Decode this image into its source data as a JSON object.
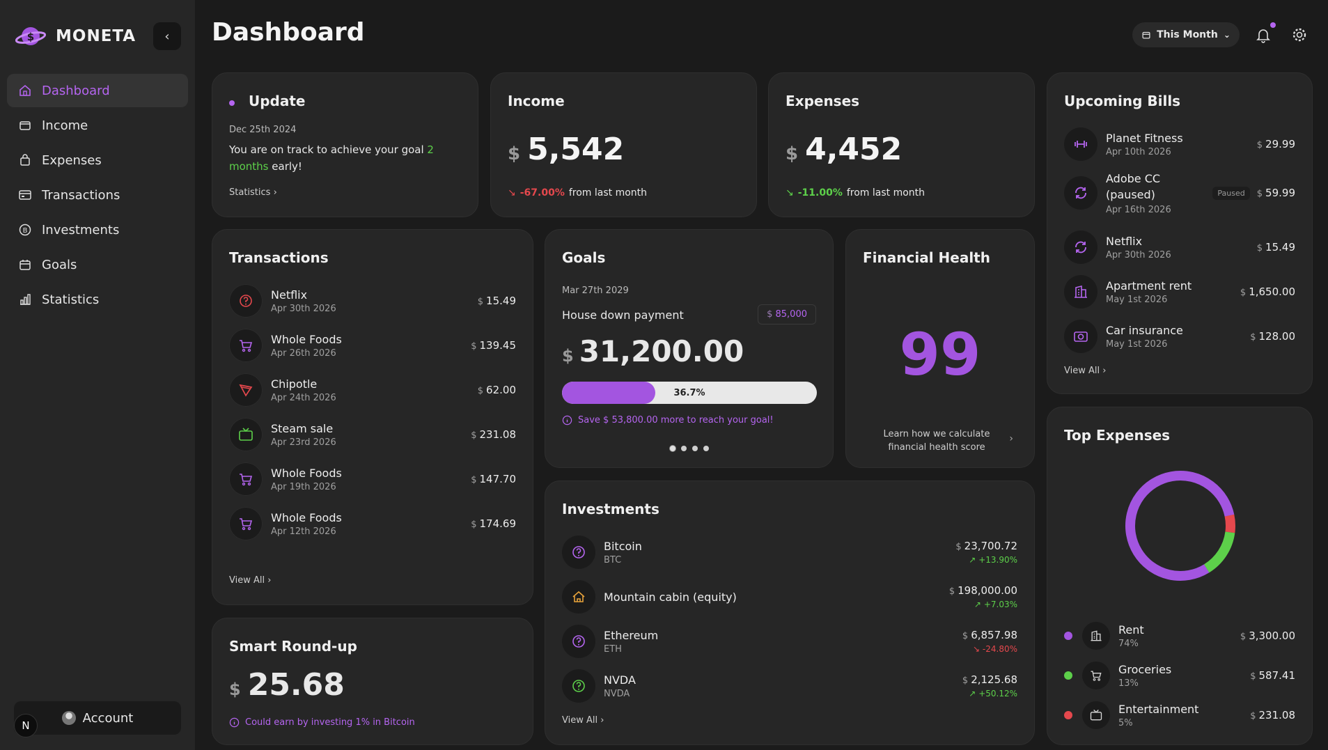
{
  "app": {
    "name": "MONETA"
  },
  "sidebar": {
    "items": [
      {
        "label": "Dashboard",
        "icon": "home-icon",
        "active": true
      },
      {
        "label": "Income",
        "icon": "wallet-icon"
      },
      {
        "label": "Expenses",
        "icon": "bag-icon"
      },
      {
        "label": "Transactions",
        "icon": "card-icon"
      },
      {
        "label": "Investments",
        "icon": "bitcoin-icon"
      },
      {
        "label": "Goals",
        "icon": "calendar-icon"
      },
      {
        "label": "Statistics",
        "icon": "chart-icon"
      }
    ],
    "account_label": "Account",
    "badge": "N"
  },
  "header": {
    "title": "Dashboard",
    "period": "This Month"
  },
  "update": {
    "title": "Update",
    "date": "Dec 25th 2024",
    "message_before": "You are on track to achieve your goal ",
    "message_highlight": "2 months",
    "message_after": " early!",
    "link": "Statistics"
  },
  "income": {
    "title": "Income",
    "currency": "$",
    "amount": "5,542",
    "change": "-67.00%",
    "change_text": "from last month"
  },
  "expenses": {
    "title": "Expenses",
    "currency": "$",
    "amount": "4,452",
    "change": "-11.00%",
    "change_text": "from last month"
  },
  "bills": {
    "title": "Upcoming Bills",
    "items": [
      {
        "name": "Planet Fitness",
        "date": "Apr 10th 2026",
        "currency": "$",
        "amount": "29.99",
        "icon": "dumbbell-icon"
      },
      {
        "name": "Adobe CC (paused)",
        "date": "Apr 16th 2026",
        "currency": "$",
        "amount": "59.99",
        "badge": "Paused",
        "icon": "refresh-icon"
      },
      {
        "name": "Netflix",
        "date": "Apr 30th 2026",
        "currency": "$",
        "amount": "15.49",
        "icon": "refresh-icon"
      },
      {
        "name": "Apartment rent",
        "date": "May 1st 2026",
        "currency": "$",
        "amount": "1,650.00",
        "icon": "building-icon"
      },
      {
        "name": "Car insurance",
        "date": "May 1st 2026",
        "currency": "$",
        "amount": "128.00",
        "icon": "camera-icon"
      }
    ],
    "link": "View All"
  },
  "transactions": {
    "title": "Transactions",
    "items": [
      {
        "name": "Netflix",
        "date": "Apr 30th 2026",
        "currency": "$",
        "amount": "15.49",
        "icon": "question-icon",
        "color": "#e5484d"
      },
      {
        "name": "Whole Foods",
        "date": "Apr 26th 2026",
        "currency": "$",
        "amount": "139.45",
        "icon": "cart-icon",
        "color": "#b565f0"
      },
      {
        "name": "Chipotle",
        "date": "Apr 24th 2026",
        "currency": "$",
        "amount": "62.00",
        "icon": "pizza-icon",
        "color": "#e5484d"
      },
      {
        "name": "Steam sale",
        "date": "Apr 23rd 2026",
        "currency": "$",
        "amount": "231.08",
        "icon": "tv-icon",
        "color": "#5dd04a"
      },
      {
        "name": "Whole Foods",
        "date": "Apr 19th 2026",
        "currency": "$",
        "amount": "147.70",
        "icon": "cart-icon",
        "color": "#b565f0"
      },
      {
        "name": "Whole Foods",
        "date": "Apr 12th 2026",
        "currency": "$",
        "amount": "174.69",
        "icon": "cart-icon",
        "color": "#b565f0"
      }
    ],
    "link": "View All"
  },
  "goals": {
    "title": "Goals",
    "date": "Mar 27th 2029",
    "name": "House down payment",
    "target_currency": "$",
    "target": "85,000",
    "currency": "$",
    "amount": "31,200.00",
    "progress_label": "36.7%",
    "progress": 0.367,
    "hint": "Save $ 53,800.00 more to reach your goal!"
  },
  "health": {
    "title": "Financial Health",
    "score": "99",
    "learn": "Learn how we calculate financial health score"
  },
  "investments": {
    "title": "Investments",
    "items": [
      {
        "name": "Bitcoin",
        "ticker": "BTC",
        "currency": "$",
        "amount": "23,700.72",
        "change": "+13.90%",
        "up": true,
        "icon": "question-icon",
        "color": "#b565f0"
      },
      {
        "name": "Mountain cabin (equity)",
        "ticker": "",
        "currency": "$",
        "amount": "198,000.00",
        "change": "+7.03%",
        "up": true,
        "icon": "cabin-icon",
        "color": "#e8a33b"
      },
      {
        "name": "Ethereum",
        "ticker": "ETH",
        "currency": "$",
        "amount": "6,857.98",
        "change": "-24.80%",
        "up": false,
        "icon": "question-icon",
        "color": "#b565f0"
      },
      {
        "name": "NVDA",
        "ticker": "NVDA",
        "currency": "$",
        "amount": "2,125.68",
        "change": "+50.12%",
        "up": true,
        "icon": "question-icon",
        "color": "#5dd04a"
      }
    ],
    "link": "View All"
  },
  "roundup": {
    "title": "Smart Round-up",
    "currency": "$",
    "amount": "25.68",
    "hint": "Could earn by investing 1% in Bitcoin"
  },
  "top_expenses": {
    "title": "Top Expenses",
    "items": [
      {
        "name": "Rent",
        "pct": "74%",
        "currency": "$",
        "amount": "3,300.00",
        "color": "#a355e0",
        "icon": "building-icon"
      },
      {
        "name": "Groceries",
        "pct": "13%",
        "currency": "$",
        "amount": "587.41",
        "color": "#5dd04a",
        "icon": "cart-icon"
      },
      {
        "name": "Entertainment",
        "pct": "5%",
        "currency": "$",
        "amount": "231.08",
        "color": "#e5484d",
        "icon": "tv-icon"
      }
    ]
  },
  "chart_data": {
    "type": "pie",
    "categories": [
      "Rent",
      "Groceries",
      "Entertainment"
    ],
    "values": [
      74,
      13,
      5
    ],
    "colors": [
      "#a355e0",
      "#5dd04a",
      "#e5484d"
    ]
  }
}
